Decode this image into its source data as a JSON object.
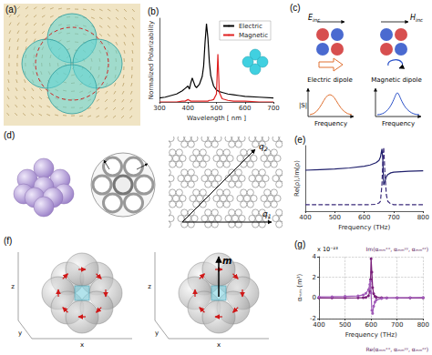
{
  "chart_data": [
    {
      "type": "line",
      "title": "(b)",
      "x_label": "Wavelength [ nm ]",
      "y_label": "Normalized Polarizability",
      "x": [
        300,
        320,
        340,
        360,
        380,
        390,
        400,
        405,
        410,
        415,
        420,
        425,
        430,
        440,
        450,
        455,
        460,
        465,
        470,
        475,
        480,
        490,
        500,
        505,
        510,
        520,
        540,
        560,
        580,
        600,
        650,
        700
      ],
      "series": [
        {
          "name": "Electric",
          "color": "#000000",
          "values": [
            0.05,
            0.06,
            0.08,
            0.1,
            0.14,
            0.17,
            0.2,
            0.16,
            0.24,
            0.3,
            0.25,
            0.2,
            0.18,
            0.22,
            0.32,
            0.45,
            0.75,
            0.98,
            0.8,
            0.5,
            0.33,
            0.2,
            0.15,
            0.14,
            0.13,
            0.12,
            0.1,
            0.09,
            0.08,
            0.07,
            0.06,
            0.05
          ]
        },
        {
          "name": "Magnetic",
          "color": "#e02020",
          "values": [
            0,
            0,
            0,
            0,
            0.01,
            0.01,
            0.03,
            0.02,
            0.01,
            0.01,
            0.01,
            0.01,
            0.01,
            0.01,
            0.01,
            0.01,
            0.01,
            0.01,
            0.01,
            0.02,
            0.02,
            0.03,
            0.1,
            0.6,
            0.12,
            0.04,
            0.02,
            0.01,
            0.01,
            0.01,
            0,
            0
          ]
        }
      ],
      "xlim": [
        300,
        700
      ],
      "xticks": [
        300,
        400,
        500,
        600,
        700
      ],
      "ylim": [
        0,
        1.05
      ],
      "legend": "upper right",
      "tick_labels": "x",
      "grid": false
    },
    {
      "type": "line",
      "title": "(e)",
      "x_label": "Frequency (THz)",
      "y_label": "Re(ρ),Im(ρ)",
      "x": [
        400,
        450,
        500,
        550,
        600,
        620,
        640,
        650,
        655,
        660,
        663,
        666,
        670,
        675,
        680,
        690,
        700,
        750,
        800
      ],
      "series": [
        {
          "color": "#1f1f6b",
          "line_style": "solid",
          "values": [
            0.25,
            0.27,
            0.29,
            0.32,
            0.37,
            0.41,
            0.48,
            0.55,
            0.65,
            0.9,
            0.6,
            -0.2,
            -0.1,
            0.05,
            0.12,
            0.17,
            0.19,
            0.22,
            0.23
          ]
        },
        {
          "color": "#3a2a7a",
          "line_style": "dashed",
          "values": [
            -0.8,
            -0.8,
            -0.8,
            -0.8,
            -0.8,
            -0.8,
            -0.79,
            -0.75,
            -0.7,
            -0.2,
            0.5,
            0.95,
            0.2,
            -0.5,
            -0.7,
            -0.78,
            -0.8,
            -0.8,
            -0.8
          ]
        }
      ],
      "xlim": [
        400,
        800
      ],
      "xticks": [
        400,
        500,
        600,
        700,
        800
      ],
      "ylim": [
        -1,
        1
      ],
      "tick_labels": "x",
      "grid": false
    },
    {
      "type": "line",
      "title": "(g)",
      "x_label": "Frequency (THz)",
      "y_label": "αₘₘ (m³)",
      "x": [
        400,
        450,
        500,
        550,
        570,
        580,
        590,
        595,
        598,
        600,
        603,
        606,
        610,
        615,
        620,
        640,
        660,
        700,
        750,
        800
      ],
      "series": [
        {
          "color": "#7a1f7a",
          "marker": "circle",
          "values": [
            0,
            0,
            0,
            0.01,
            0.02,
            0.05,
            0.2,
            0.6,
            1.8,
            3.8,
            2.5,
            1.0,
            0.4,
            0.15,
            0.08,
            0.02,
            0.01,
            0,
            0,
            0
          ]
        },
        {
          "color": "#a05ab8",
          "marker": "circle",
          "values": [
            0.1,
            0.12,
            0.15,
            0.2,
            0.3,
            0.45,
            0.8,
            1.3,
            1.6,
            0.5,
            -1.2,
            -1.5,
            -0.8,
            -0.4,
            -0.2,
            -0.05,
            0,
            0.02,
            0.03,
            0.04
          ]
        }
      ],
      "xlim": [
        400,
        800
      ],
      "xticks": [
        400,
        500,
        600,
        700,
        800
      ],
      "ylim": [
        -2,
        4
      ],
      "yticks": [
        -2,
        0,
        2,
        4
      ],
      "annotations": [
        "x 10⁻²³",
        "Im(αₘₘˣˣ, αₘₘʸʸ, αₘₘᶻᶻ)",
        "Re(αₘₘˣˣ, αₘₘʸʸ, αₘₘᶻᶻ)"
      ],
      "grid": true
    }
  ],
  "panels": {
    "a": {
      "label": "(a)"
    },
    "c": {
      "label": "(c)",
      "field_labels": [
        {
          "main": "E",
          "sub": "inc"
        },
        {
          "main": "H",
          "sub": "inc"
        }
      ],
      "modes": [
        "Electric dipole",
        "Magnetic dipole"
      ],
      "y_axis": "|S|",
      "x_axis": "Frequency"
    },
    "d": {
      "label": "(d)",
      "vectors": [
        {
          "main": "q",
          "sub": "1"
        },
        {
          "main": "q",
          "sub": "2"
        }
      ]
    },
    "f": {
      "label": "(f)",
      "axis_names": [
        "x",
        "y",
        "z"
      ],
      "moment": "m"
    }
  }
}
